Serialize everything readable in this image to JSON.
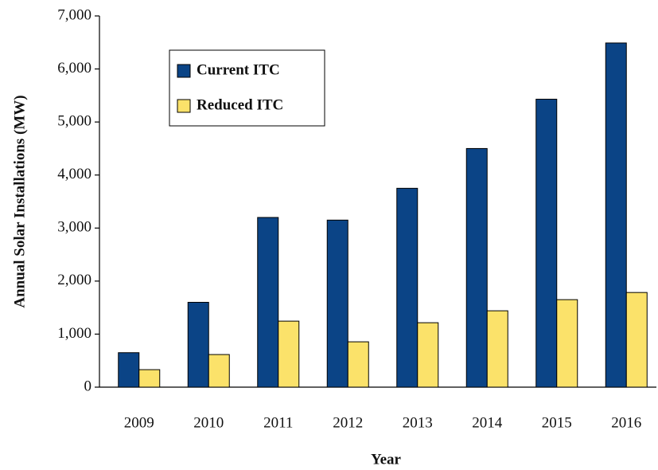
{
  "chart_data": {
    "type": "bar",
    "x_label": "Year",
    "y_label": "Annual Solar Installations (MW)",
    "categories": [
      "2009",
      "2010",
      "2011",
      "2012",
      "2013",
      "2014",
      "2015",
      "2016"
    ],
    "series": [
      {
        "name": "Current ITC",
        "color": "#0b4486",
        "values": [
          650,
          1600,
          3200,
          3150,
          3750,
          4500,
          5430,
          6490
        ]
      },
      {
        "name": "Reduced ITC",
        "color": "#fbe26a",
        "values": [
          330,
          615,
          1245,
          855,
          1215,
          1440,
          1650,
          1785
        ]
      }
    ],
    "ylim": [
      0,
      7000
    ],
    "yticks": [
      0,
      {
        "value": 1000,
        "label": "1,000"
      },
      {
        "value": 2000,
        "label": "2,000"
      },
      {
        "value": 3000,
        "label": "3,000"
      },
      {
        "value": 4000,
        "label": "4,000"
      },
      {
        "value": 5000,
        "label": "5,000"
      },
      {
        "value": 6000,
        "label": "6,000"
      },
      {
        "value": 7000,
        "label": "7,000"
      }
    ],
    "legend": "upper left"
  }
}
